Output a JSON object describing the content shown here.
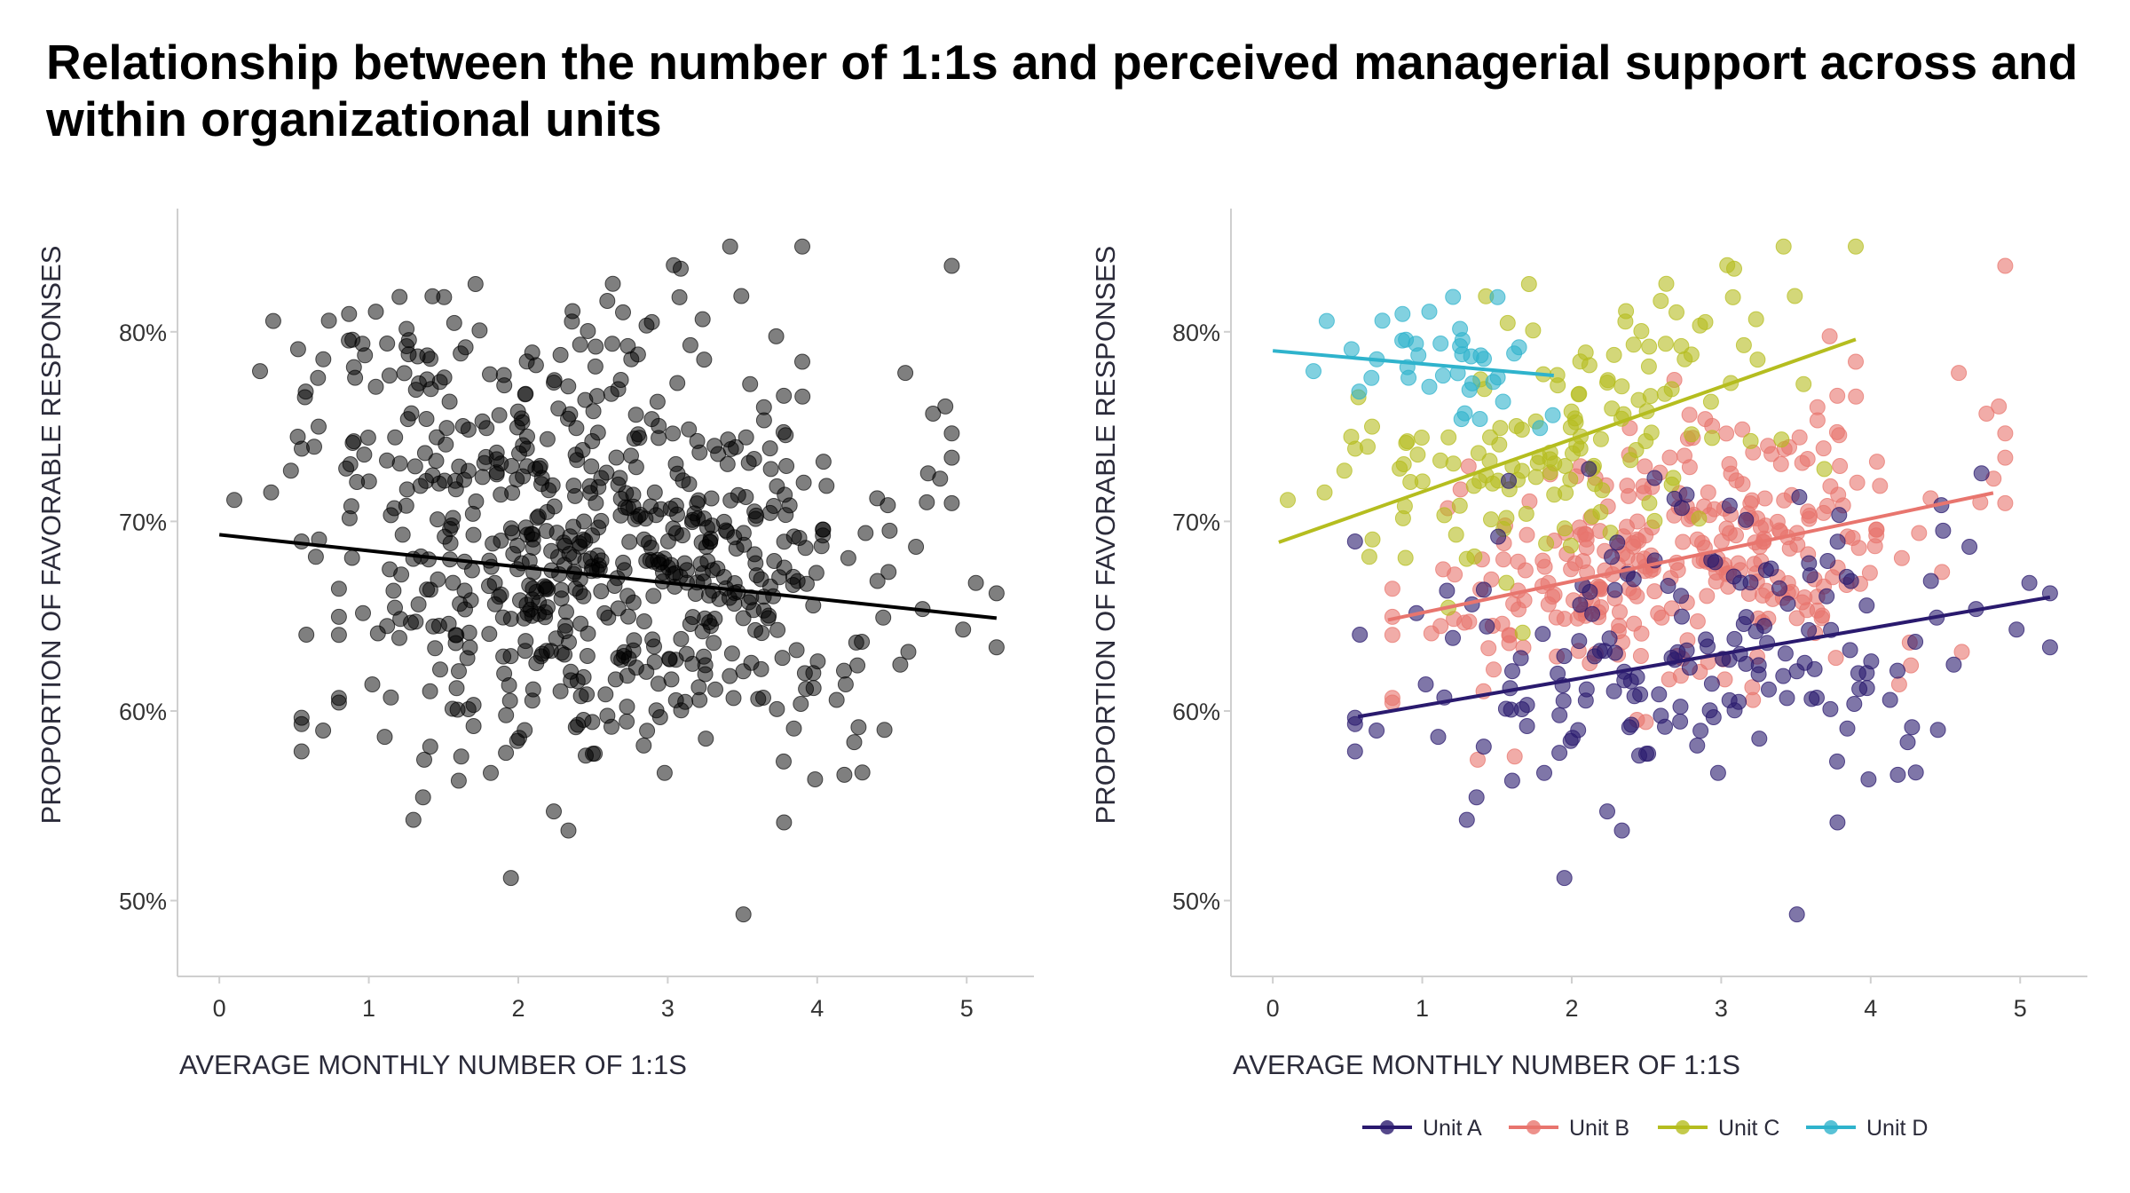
{
  "title": "Relationship between the number of 1:1s and perceived managerial support across and within organizational units",
  "chart_data": [
    {
      "type": "scatter",
      "panel": "left",
      "xlabel": "AVERAGE MONTHLY NUMBER OF 1:1S",
      "ylabel": "PROPORTION OF FAVORABLE RESPONSES",
      "xlim": [
        -0.28,
        5.45
      ],
      "ylim": [
        0.46,
        0.865
      ],
      "x_ticks": [
        0,
        1,
        2,
        3,
        4,
        5
      ],
      "x_tick_labels": [
        "0",
        "1",
        "2",
        "3",
        "4",
        "5"
      ],
      "y_ticks": [
        0.5,
        0.6,
        0.7,
        0.8
      ],
      "y_tick_labels": [
        "50%",
        "60%",
        "70%",
        "80%"
      ],
      "grid": false,
      "point_color": "#000000",
      "point_opacity": 0.5,
      "trend_line": {
        "x": [
          0,
          5.2
        ],
        "y": [
          0.693,
          0.649
        ],
        "color": "#000000"
      }
    },
    {
      "type": "scatter",
      "panel": "right",
      "xlabel": "AVERAGE MONTHLY NUMBER OF 1:1S",
      "ylabel": "PROPORTION OF FAVORABLE RESPONSES",
      "xlim": [
        -0.28,
        5.45
      ],
      "ylim": [
        0.46,
        0.865
      ],
      "x_ticks": [
        0,
        1,
        2,
        3,
        4,
        5
      ],
      "x_tick_labels": [
        "0",
        "1",
        "2",
        "3",
        "4",
        "5"
      ],
      "y_ticks": [
        0.5,
        0.6,
        0.7,
        0.8
      ],
      "y_tick_labels": [
        "50%",
        "60%",
        "70%",
        "80%"
      ],
      "grid": false,
      "legend_position": "bottom-right",
      "point_opacity": 0.6,
      "series": [
        {
          "name": "Unit A",
          "color": "#2a1a6e",
          "x_range": [
            0.55,
            5.2
          ],
          "y_center": 0.63,
          "y_spread": 0.04,
          "trend": {
            "x": [
              0.57,
              5.2
            ],
            "y": [
              0.597,
              0.66
            ]
          }
        },
        {
          "name": "Unit B",
          "color": "#e8756e",
          "x_range": [
            0.8,
            4.9
          ],
          "y_center": 0.68,
          "y_spread": 0.035,
          "trend": {
            "x": [
              0.77,
              4.82
            ],
            "y": [
              0.648,
              0.715
            ]
          }
        },
        {
          "name": "Unit C",
          "color": "#b5bd1f",
          "x_range": [
            0.0,
            3.9
          ],
          "y_center": 0.74,
          "y_spread": 0.035,
          "trend": {
            "x": [
              0.04,
              3.9
            ],
            "y": [
              0.689,
              0.796
            ]
          }
        },
        {
          "name": "Unit D",
          "color": "#2fb3cc",
          "x_range": [
            0.0,
            1.9
          ],
          "y_center": 0.785,
          "y_spread": 0.02,
          "trend": {
            "x": [
              0.0,
              1.88
            ],
            "y": [
              0.79,
              0.777
            ]
          }
        }
      ]
    }
  ]
}
